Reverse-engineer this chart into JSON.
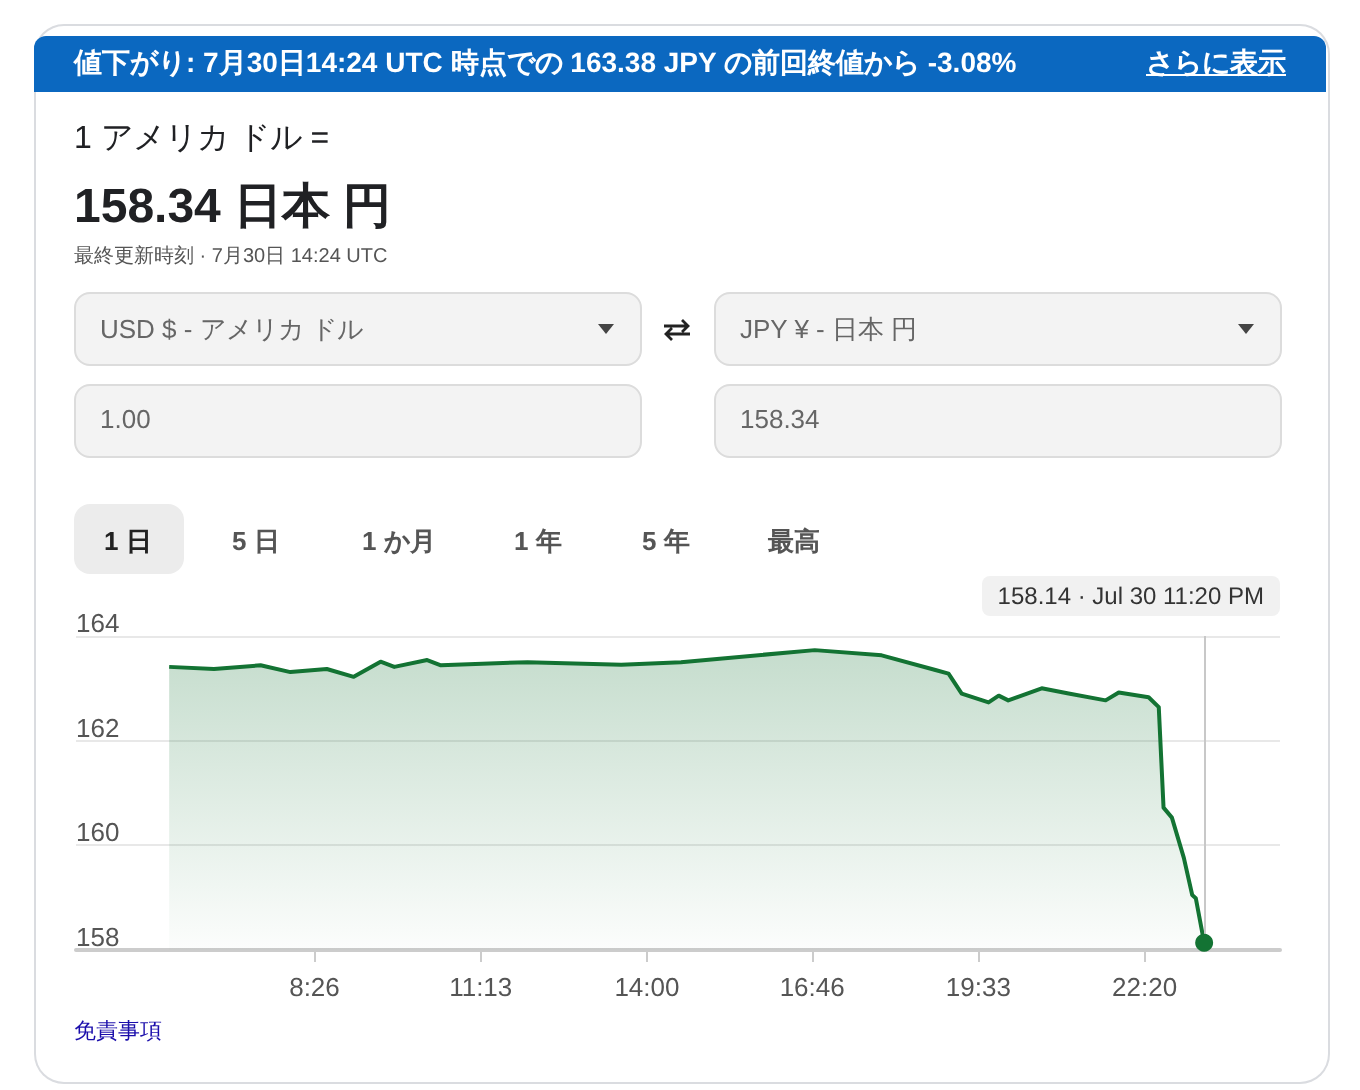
{
  "chart_data": {
    "type": "area",
    "color": "#137333",
    "x": [
      6.0,
      6.75,
      7.53,
      8.03,
      8.64,
      9.09,
      9.54,
      9.77,
      10.32,
      10.55,
      12.0,
      13.57,
      14.57,
      16.81,
      17.93,
      18.83,
      19.05,
      19.27,
      19.72,
      19.89,
      20.05,
      20.61,
      21.06,
      21.68,
      21.9,
      22.4,
      22.57,
      22.65,
      22.79,
      22.99,
      23.13,
      23.19,
      23.33
    ],
    "values": [
      163.41,
      163.37,
      163.44,
      163.31,
      163.37,
      163.22,
      163.51,
      163.41,
      163.54,
      163.44,
      163.5,
      163.45,
      163.5,
      163.73,
      163.63,
      163.35,
      163.28,
      162.9,
      162.73,
      162.86,
      162.77,
      163.0,
      162.9,
      162.77,
      162.92,
      162.83,
      162.64,
      160.72,
      160.53,
      159.76,
      159.05,
      158.99,
      158.14
    ],
    "xlim": [
      4.44,
      24.6
    ],
    "xticks": [
      {
        "value": 8.4333,
        "label": "8:26"
      },
      {
        "value": 11.2167,
        "label": "11:13"
      },
      {
        "value": 14,
        "label": "14:00"
      },
      {
        "value": 16.7667,
        "label": "16:46"
      },
      {
        "value": 19.55,
        "label": "19:33"
      },
      {
        "value": 22.3333,
        "label": "22:20"
      }
    ],
    "ylim": [
      158,
      164
    ],
    "yticks": [
      158,
      160,
      162,
      164
    ],
    "grid": "y",
    "ref_lines": [
      {
        "axis": "x",
        "value": 23.33,
        "color": "#c8c8c8"
      }
    ],
    "annotations": [
      "値下がり: 7月30日14:24 UTC 時点での 163.38 JPY の前回終値から -3.08%",
      "さらに表示",
      "1 アメリカ ドル =",
      "158.34 日本 円",
      "最終更新時刻 · 7月30日 14:24 UTC",
      "USD $ - アメリカ ドル",
      "JPY ¥ - 日本 円",
      "1.00",
      "158.34",
      "1 日",
      "5 日",
      "1 か月",
      "1 年",
      "5 年",
      "最高",
      "免責事項",
      "158.14 · Jul 30 11:20 PM"
    ]
  }
}
